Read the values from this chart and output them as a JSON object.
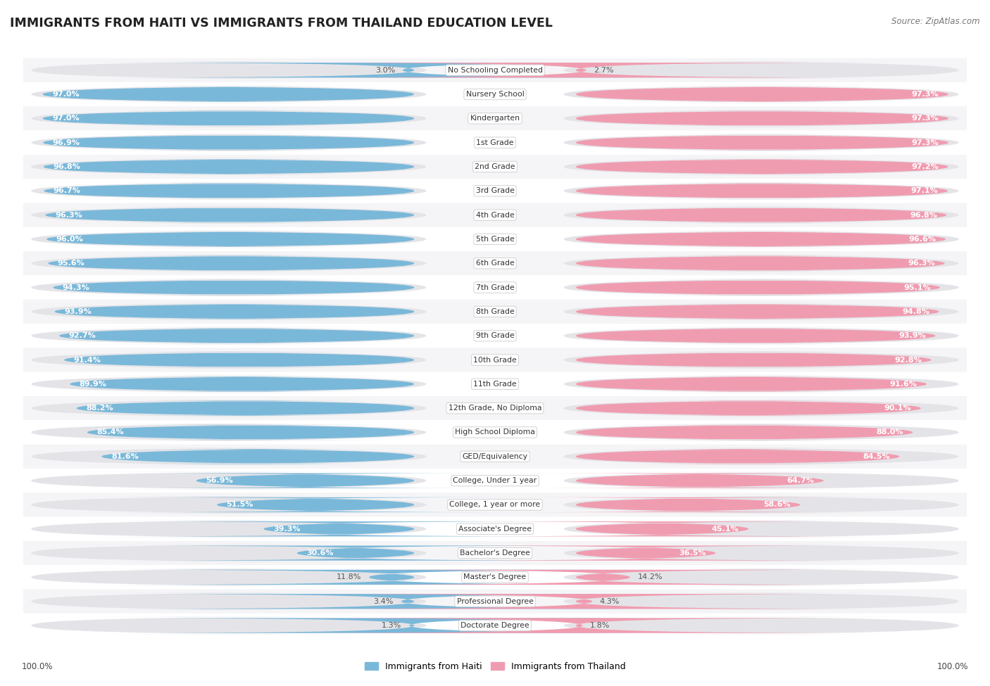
{
  "title": "IMMIGRANTS FROM HAITI VS IMMIGRANTS FROM THAILAND EDUCATION LEVEL",
  "source": "Source: ZipAtlas.com",
  "categories": [
    "No Schooling Completed",
    "Nursery School",
    "Kindergarten",
    "1st Grade",
    "2nd Grade",
    "3rd Grade",
    "4th Grade",
    "5th Grade",
    "6th Grade",
    "7th Grade",
    "8th Grade",
    "9th Grade",
    "10th Grade",
    "11th Grade",
    "12th Grade, No Diploma",
    "High School Diploma",
    "GED/Equivalency",
    "College, Under 1 year",
    "College, 1 year or more",
    "Associate's Degree",
    "Bachelor's Degree",
    "Master's Degree",
    "Professional Degree",
    "Doctorate Degree"
  ],
  "haiti_values": [
    3.0,
    97.0,
    97.0,
    96.9,
    96.8,
    96.7,
    96.3,
    96.0,
    95.6,
    94.3,
    93.9,
    92.7,
    91.4,
    89.9,
    88.2,
    85.4,
    81.6,
    56.9,
    51.5,
    39.3,
    30.6,
    11.8,
    3.4,
    1.3
  ],
  "thailand_values": [
    2.7,
    97.3,
    97.3,
    97.3,
    97.2,
    97.1,
    96.8,
    96.6,
    96.3,
    95.1,
    94.8,
    93.9,
    92.8,
    91.6,
    90.1,
    88.0,
    84.5,
    64.7,
    58.6,
    45.1,
    36.5,
    14.2,
    4.3,
    1.8
  ],
  "haiti_color": "#7ab8d9",
  "thailand_color": "#f09cb0",
  "container_color": "#e4e4e8",
  "row_color_even": "#f5f5f7",
  "row_color_odd": "#ffffff",
  "label_inside_color": "#ffffff",
  "label_outside_color": "#555555",
  "center_label_color": "#333333",
  "axis_label": "100.0%",
  "legend_haiti": "Immigrants from Haiti",
  "legend_thailand": "Immigrants from Thailand"
}
